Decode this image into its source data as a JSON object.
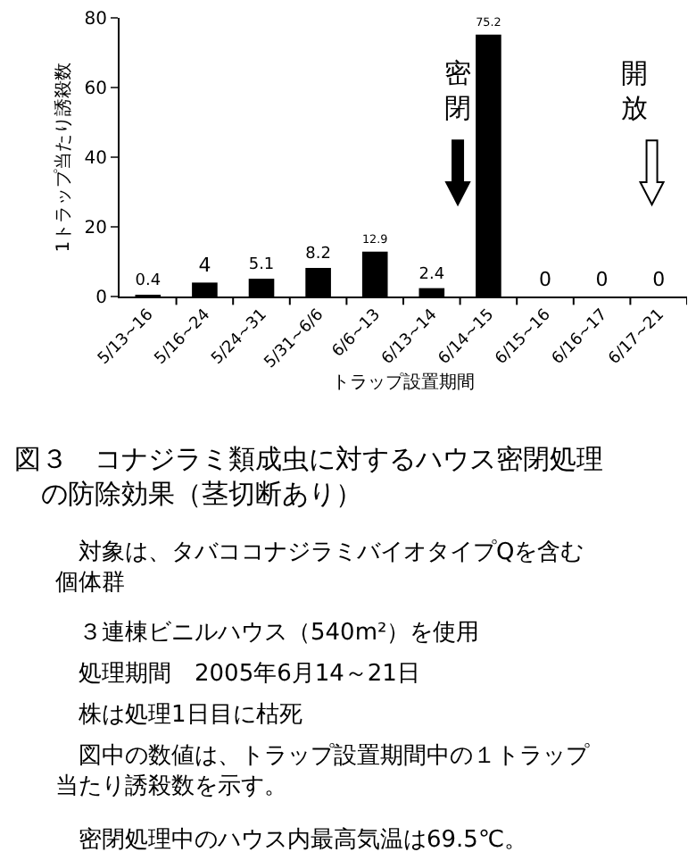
{
  "chart_data": {
    "type": "bar",
    "title": "図３　コナジラミ類成虫に対するハウス密閉処理の防除効果（茎切断あり）",
    "xlabel": "トラップ設置期間",
    "ylabel": "1トラップ当たり誘殺数",
    "categories": [
      "5/13~16",
      "5/16~24",
      "5/24~31",
      "5/31~6/6",
      "6/6~13",
      "6/13~14",
      "6/14~15",
      "6/15~16",
      "6/16~17",
      "6/17~21"
    ],
    "values": [
      0.4,
      4,
      5.1,
      8.2,
      12.9,
      2.4,
      75.2,
      0,
      0,
      0
    ],
    "color": "#000000",
    "ylim": [
      0,
      80
    ],
    "yticks": [
      0,
      20,
      40,
      60,
      80
    ],
    "data_labels": true,
    "annotations": [
      "密閉",
      "開放",
      "対象は、タバココナジラミバイオタイプQを含む個体群",
      "３連棟ビニルハウス（540m²）を使用",
      "処理期間　2005年6月14～21日",
      "株は処理1日目に枯死",
      "図中の数値は、トラップ設置期間中の１トラップ当たり誘殺数を示す。",
      "密閉処理中のハウス内最高気温は69.5℃。"
    ]
  }
}
